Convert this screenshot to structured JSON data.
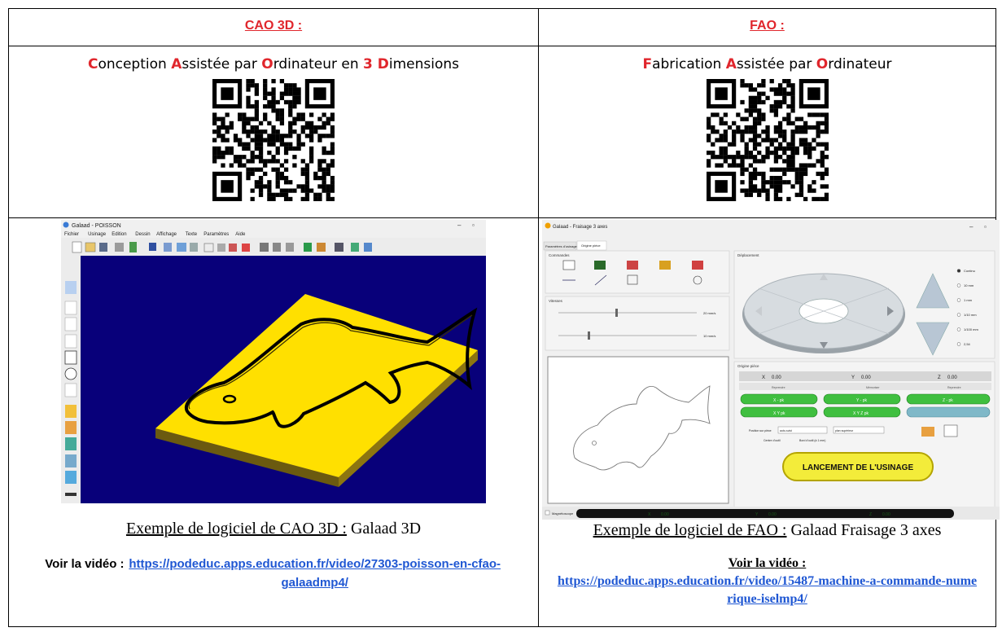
{
  "cao": {
    "heading": "CAO 3D :",
    "definition": [
      {
        "text": "C",
        "red": true
      },
      {
        "text": "onception ",
        "red": false
      },
      {
        "text": "A",
        "red": true
      },
      {
        "text": "ssistée par ",
        "red": false
      },
      {
        "text": "O",
        "red": true
      },
      {
        "text": "rdinateur en ",
        "red": false
      },
      {
        "text": "3 D",
        "red": true
      },
      {
        "text": "imensions",
        "red": false
      }
    ],
    "caption_underlined": "Exemple de logiciel de CAO 3D :",
    "caption_rest": " Galaad 3D",
    "video_label": "Voir la vidéo :",
    "video_link": "https://podeduc.apps.education.fr/video/27303-poisson-en-cfao-galaadmp4/",
    "screenshot": {
      "window_title": "Galaad - POISSON",
      "menu": [
        "Fichier",
        "Usinage",
        "Edition",
        "Dessin",
        "Affichage",
        "Texte",
        "Paramètres",
        "Aide"
      ]
    }
  },
  "fao": {
    "heading": "FAO :",
    "definition": [
      {
        "text": "F",
        "red": true
      },
      {
        "text": "abrication ",
        "red": false
      },
      {
        "text": "A",
        "red": true
      },
      {
        "text": "ssistée par ",
        "red": false
      },
      {
        "text": "O",
        "red": true
      },
      {
        "text": "rdinateur",
        "red": false
      }
    ],
    "caption_underlined": "Exemple de logiciel de FAO :",
    "caption_rest": " Galaad Fraisage 3 axes",
    "video_label": "Voir la vidéo :",
    "video_link": "https://podeduc.apps.education.fr/video/15487-machine-a-commande-numerique-iselmp4/",
    "screenshot": {
      "window_title": "Galaad - Fraisage 3 axes",
      "tabs": [
        "Paramètres d'usinage",
        "Origine pièce"
      ],
      "group_commandes": "Commandes",
      "group_vitesses": "Vitesses",
      "group_deplacement": "Déplacement",
      "group_origine": "Origine pièce",
      "speed1": "20 mm/s",
      "speed2": "10 mm/s",
      "step_options": [
        "Continu",
        "10 mm",
        "1 mm",
        "1/10 mm",
        "1/100 mm",
        "2,54"
      ],
      "x_label": "X",
      "x_value": "0.00",
      "y_label": "Y",
      "y_value": "0.00",
      "z_label": "Z",
      "z_value": "0.00",
      "reprendre": "Reprendre",
      "memoriser": "Mémoriser",
      "btn_x": "X - pk",
      "btn_y": "Y - pk",
      "btn_z": "Z - pk",
      "btn_xy": "X Y pk",
      "btn_xyz": "X Y Z pk",
      "position_label": "Position sur pièce",
      "sel1": "auto-suivi",
      "sel2": "plan supérieur",
      "centre": "Centre d'outil",
      "bord": "Bord d'outil (à 1 mm)",
      "launch": "LANCEMENT DE L'USINAGE",
      "magnetoscope": "Magnétoscope",
      "status_x": "X",
      "status_xv": "0.00",
      "status_y": "Y",
      "status_yv": "0.00",
      "status_z": "Z",
      "status_zv": "0.00"
    }
  }
}
